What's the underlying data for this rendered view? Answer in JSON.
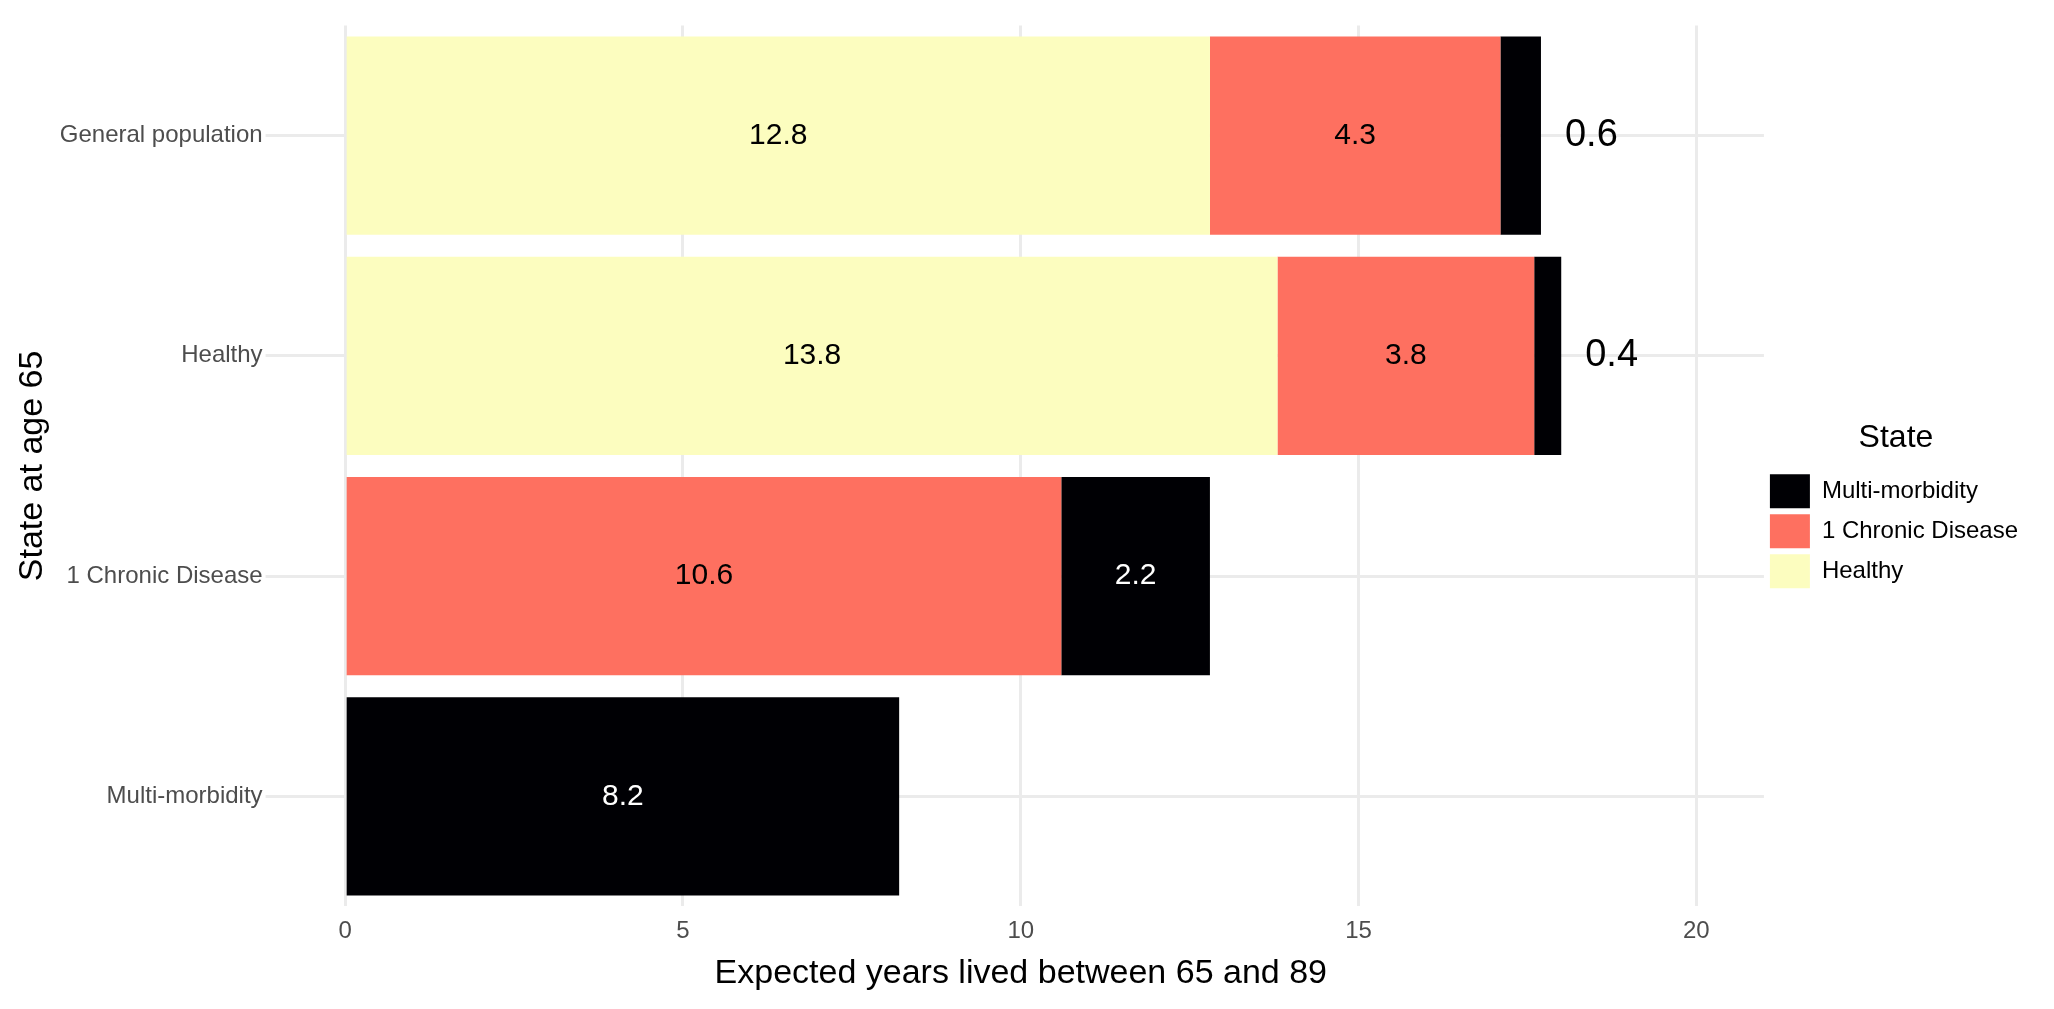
{
  "chart_data": {
    "type": "bar",
    "orientation": "horizontal",
    "stacked": true,
    "xlabel": "Expected years lived between 65 and 89",
    "ylabel": "State at age 65",
    "legend_title": "State",
    "categories": [
      "General population",
      "Healthy",
      "1 Chronic Disease",
      "Multi-morbidity"
    ],
    "series": [
      {
        "name": "Healthy",
        "color": "#fcfdbf",
        "values": [
          12.8,
          13.8,
          null,
          null
        ]
      },
      {
        "name": "1 Chronic Disease",
        "color": "#fe7060",
        "values": [
          4.3,
          3.8,
          10.6,
          null
        ]
      },
      {
        "name": "Multi-morbidity",
        "color": "#000004",
        "values": [
          0.6,
          0.4,
          2.2,
          8.2
        ]
      }
    ],
    "xlim": [
      -1,
      21
    ],
    "xticks": [
      0,
      5,
      10,
      15,
      20
    ],
    "grid": true,
    "legend": "right",
    "data_labels": true
  }
}
